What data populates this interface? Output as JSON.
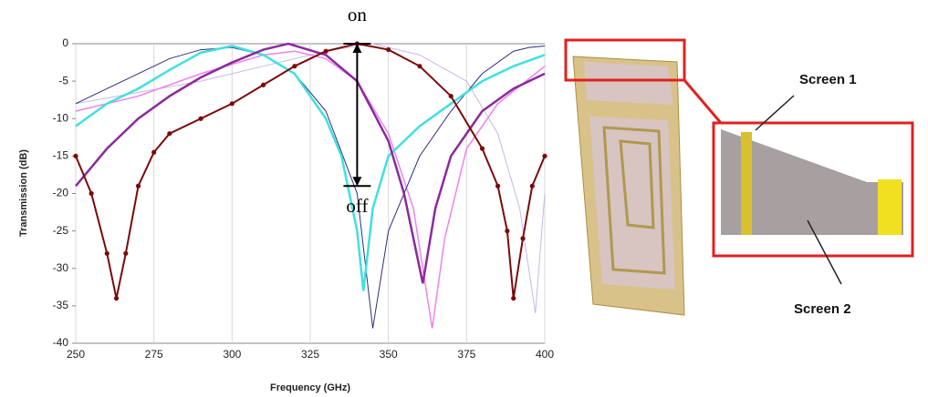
{
  "chart_data": {
    "type": "line",
    "xlabel": "Frequency (GHz)",
    "ylabel": "Transmission (dB)",
    "xlim": [
      250,
      400
    ],
    "xticks": [
      250,
      275,
      300,
      325,
      350,
      375,
      400
    ],
    "ylim": [
      -40,
      0
    ],
    "yticks": [
      0,
      -5,
      -10,
      -15,
      -20,
      -25,
      -30,
      -35,
      -40
    ],
    "grid": "x",
    "series": [
      {
        "color": "#c6b8e6",
        "markers": false,
        "width": 1,
        "x": [
          250,
          270,
          290,
          310,
          330,
          345,
          360,
          375,
          385,
          392,
          397,
          400
        ],
        "values": [
          -8,
          -6.5,
          -5,
          -3,
          -1,
          0,
          -1.5,
          -5,
          -12,
          -22,
          -36,
          -20
        ]
      },
      {
        "color": "#ee82ee",
        "markers": false,
        "width": 1.5,
        "x": [
          250,
          270,
          290,
          310,
          320,
          330,
          340,
          350,
          358,
          364,
          368,
          375,
          385,
          400
        ],
        "values": [
          -9,
          -7,
          -4,
          -1.5,
          -1,
          -2,
          -5,
          -12,
          -22,
          -38,
          -26,
          -14,
          -8,
          -3
        ]
      },
      {
        "color": "#2e2e80",
        "markers": false,
        "width": 1,
        "x": [
          250,
          260,
          270,
          280,
          290,
          300,
          310,
          320,
          330,
          340,
          345,
          350,
          360,
          370,
          380,
          390,
          395,
          400
        ],
        "values": [
          -8,
          -6,
          -4,
          -2,
          -0.8,
          -0.5,
          -1.5,
          -4,
          -9,
          -20,
          -38,
          -25,
          -15,
          -9,
          -4,
          -1,
          -0.5,
          -0.3
        ]
      },
      {
        "color": "#40e0e0",
        "markers": false,
        "width": 2.5,
        "x": [
          250,
          260,
          270,
          280,
          290,
          300,
          310,
          320,
          330,
          335,
          340,
          342,
          345,
          350,
          360,
          370,
          380,
          390,
          400
        ],
        "values": [
          -11,
          -8,
          -6,
          -3.5,
          -1.2,
          -0.3,
          -1.5,
          -4,
          -10,
          -15,
          -25,
          -33,
          -22,
          -15,
          -11,
          -8,
          -5,
          -3,
          -1.5
        ]
      },
      {
        "color": "#8b2a9b",
        "markers": false,
        "width": 2.5,
        "x": [
          250,
          260,
          270,
          280,
          290,
          300,
          310,
          318,
          330,
          340,
          350,
          355,
          361,
          365,
          370,
          380,
          390,
          400
        ],
        "values": [
          -19,
          -14,
          -10,
          -7,
          -4.5,
          -2.5,
          -0.8,
          0,
          -1.5,
          -5,
          -13,
          -20,
          -32,
          -22,
          -15,
          -9,
          -6,
          -4
        ]
      },
      {
        "color": "#7a0a0a",
        "markers": true,
        "width": 2,
        "x": [
          250,
          255,
          260,
          263,
          266,
          270,
          275,
          280,
          290,
          300,
          310,
          320,
          330,
          340,
          350,
          360,
          370,
          380,
          385,
          388,
          390,
          393,
          396,
          400
        ],
        "values": [
          -15,
          -20,
          -28,
          -34,
          -28,
          -19,
          -14.5,
          -12,
          -10,
          -8,
          -5.5,
          -3,
          -1,
          0,
          -0.8,
          -3,
          -7,
          -14,
          -19,
          -25,
          -34,
          -26,
          -19,
          -15
        ]
      }
    ],
    "annotations": [
      {
        "text": "on"
      },
      {
        "text": "off"
      }
    ],
    "on_off_arrow": {
      "x": 340,
      "top": 0,
      "bottom": -19
    }
  },
  "figure": {
    "labels": [
      "Screen 1",
      "Screen 2"
    ]
  }
}
